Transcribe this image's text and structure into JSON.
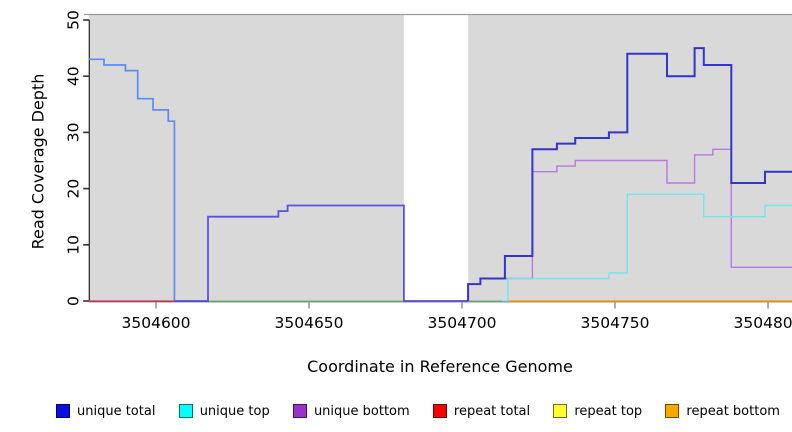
{
  "figure": {
    "xlabel": "Coordinate in Reference Genome",
    "ylabel": "Read Coverage Depth"
  },
  "chart_data": {
    "type": "line",
    "subtype": "step-coverage-plot",
    "title": "",
    "xlabel": "Coordinate in Reference Genome",
    "ylabel": "Read Coverage Depth",
    "xlim": [
      3504578,
      3504808
    ],
    "ylim": [
      0,
      50
    ],
    "xticks": [
      3504600,
      3504650,
      3504700,
      3504750,
      3504800
    ],
    "yticks": [
      0,
      10,
      20,
      30,
      40,
      50
    ],
    "grid": false,
    "plot_background": "#d9d9d9",
    "unshaded_region": [
      3504681,
      3504702
    ],
    "legend_position": "bottom",
    "legend": [
      {
        "label": "unique total",
        "color": "#0d0de0"
      },
      {
        "label": "unique top",
        "color": "#00ffff"
      },
      {
        "label": "unique bottom",
        "color": "#9932cc"
      },
      {
        "label": "repeat total",
        "color": "#ff0000"
      },
      {
        "label": "repeat top",
        "color": "#ffff2e"
      },
      {
        "label": "repeat bottom",
        "color": "#ffa500"
      }
    ],
    "series": [
      {
        "name": "baseline-green",
        "color": "#8cc98c",
        "width": 1.4,
        "points": [
          [
            3504617,
            0
          ],
          [
            3504713,
            0
          ]
        ]
      },
      {
        "name": "repeat-total",
        "color": "#df4a5c",
        "width": 1.5,
        "points": [
          [
            3504578,
            0
          ],
          [
            3504606,
            0
          ]
        ]
      },
      {
        "name": "repeat-bottom",
        "color": "#ffa11f",
        "width": 1.7,
        "points": [
          [
            3504715,
            0
          ],
          [
            3504808,
            0
          ]
        ]
      },
      {
        "name": "unique-bottom",
        "color": "#b87ade",
        "width": 1.4,
        "points": [
          [
            3504702,
            0
          ],
          [
            3504702,
            3
          ],
          [
            3504706,
            3
          ],
          [
            3504706,
            4
          ],
          [
            3504723,
            4
          ],
          [
            3504723,
            23
          ],
          [
            3504731,
            23
          ],
          [
            3504731,
            24
          ],
          [
            3504737,
            24
          ],
          [
            3504737,
            25
          ],
          [
            3504767,
            25
          ],
          [
            3504767,
            21
          ],
          [
            3504776,
            21
          ],
          [
            3504776,
            26
          ],
          [
            3504782,
            26
          ],
          [
            3504782,
            27
          ],
          [
            3504788,
            27
          ],
          [
            3504788,
            6
          ],
          [
            3504808,
            6
          ]
        ]
      },
      {
        "name": "unique-top",
        "color": "#72e6ec",
        "width": 1.4,
        "points": [
          [
            3504713,
            0
          ],
          [
            3504715,
            0
          ],
          [
            3504715,
            4
          ],
          [
            3504748,
            4
          ],
          [
            3504748,
            5
          ],
          [
            3504754,
            5
          ],
          [
            3504754,
            19
          ],
          [
            3504779,
            19
          ],
          [
            3504779,
            15
          ],
          [
            3504799,
            15
          ],
          [
            3504799,
            17
          ],
          [
            3504808,
            17
          ]
        ]
      },
      {
        "name": "unique-total-left",
        "color": "#5b8cf2",
        "width": 1.7,
        "points": [
          [
            3504578,
            43
          ],
          [
            3504583,
            43
          ],
          [
            3504583,
            42
          ],
          [
            3504590,
            42
          ],
          [
            3504590,
            41
          ],
          [
            3504594,
            41
          ],
          [
            3504594,
            36
          ],
          [
            3504599,
            36
          ],
          [
            3504599,
            34
          ],
          [
            3504604,
            34
          ],
          [
            3504604,
            32
          ],
          [
            3504606,
            32
          ],
          [
            3504606,
            0
          ]
        ]
      },
      {
        "name": "unique-total-mid",
        "color": "#5a50e4",
        "width": 1.8,
        "points": [
          [
            3504606,
            0
          ],
          [
            3504617,
            0
          ],
          [
            3504617,
            15
          ],
          [
            3504640,
            15
          ],
          [
            3504640,
            16
          ],
          [
            3504643,
            16
          ],
          [
            3504643,
            17
          ],
          [
            3504681,
            17
          ],
          [
            3504681,
            0
          ],
          [
            3504702,
            0
          ]
        ]
      },
      {
        "name": "unique-total-right",
        "color": "#3434ce",
        "width": 2.0,
        "points": [
          [
            3504702,
            0
          ],
          [
            3504702,
            3
          ],
          [
            3504706,
            3
          ],
          [
            3504706,
            4
          ],
          [
            3504714,
            4
          ],
          [
            3504714,
            8
          ],
          [
            3504723,
            8
          ],
          [
            3504723,
            27
          ],
          [
            3504731,
            27
          ],
          [
            3504731,
            28
          ],
          [
            3504737,
            28
          ],
          [
            3504737,
            29
          ],
          [
            3504748,
            29
          ],
          [
            3504748,
            30
          ],
          [
            3504754,
            30
          ],
          [
            3504754,
            44
          ],
          [
            3504767,
            44
          ],
          [
            3504767,
            40
          ],
          [
            3504776,
            40
          ],
          [
            3504776,
            45
          ],
          [
            3504779,
            45
          ],
          [
            3504779,
            42
          ],
          [
            3504788,
            42
          ],
          [
            3504788,
            21
          ],
          [
            3504799,
            21
          ],
          [
            3504799,
            23
          ],
          [
            3504808,
            23
          ]
        ]
      }
    ]
  }
}
